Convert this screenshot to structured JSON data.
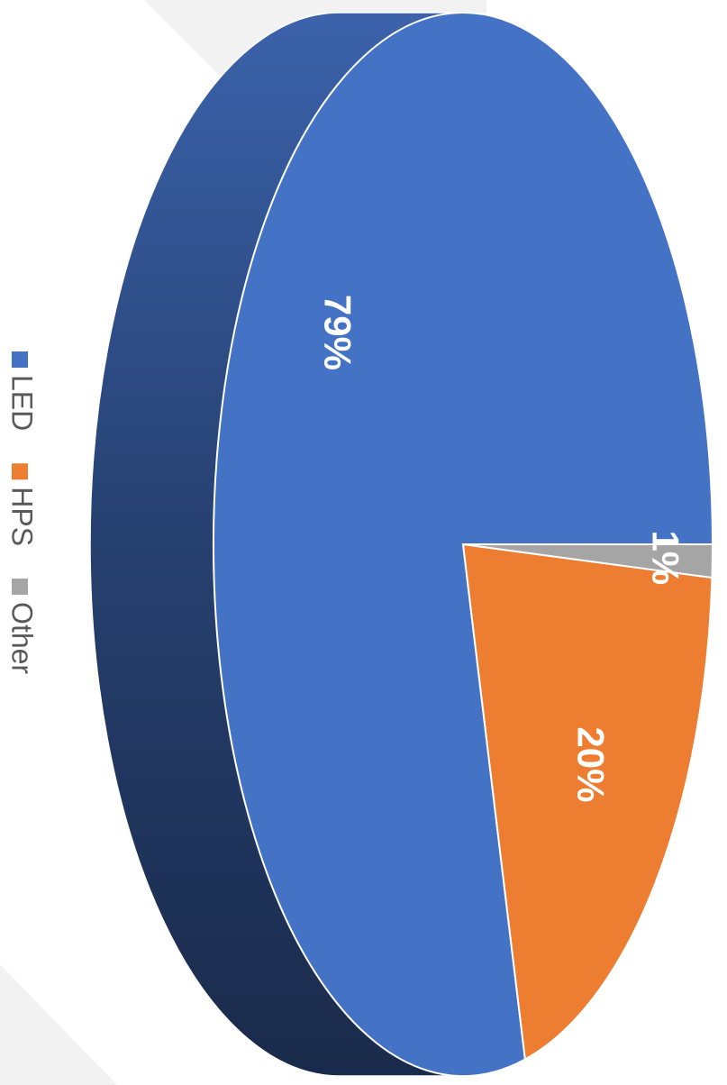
{
  "chart_data": {
    "type": "pie",
    "categories": [
      "LED",
      "HPS",
      "Other"
    ],
    "values": [
      79,
      20,
      1
    ],
    "value_labels": [
      "79%",
      "20%",
      "1%"
    ],
    "colors": [
      "#4472c4",
      "#ed7d31",
      "#a5a5a5"
    ],
    "legend": "left"
  }
}
